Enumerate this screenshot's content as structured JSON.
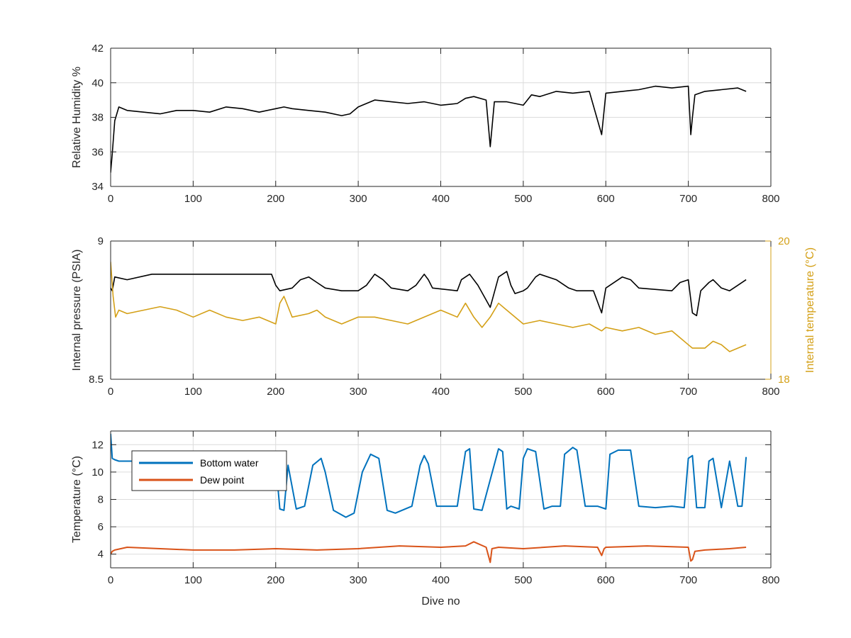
{
  "colors": {
    "background": "#ffffff",
    "axis": "#262626",
    "grid": "#dcdcdc",
    "black_series": "#000000",
    "internal_temperature": "#d4a017",
    "bottom_water": "#0072bd",
    "dew_point": "#d95319"
  },
  "chart_data": [
    {
      "type": "line",
      "xlim": [
        0,
        800
      ],
      "ylim": [
        34,
        42
      ],
      "xticks": [
        "0",
        "100",
        "200",
        "300",
        "400",
        "500",
        "600",
        "700",
        "800"
      ],
      "yticks": [
        "34",
        "36",
        "38",
        "40",
        "42"
      ],
      "xlabel": "",
      "ylabel": "Relative Humidity %",
      "grid": true,
      "series": [
        {
          "color": "#000000",
          "x": [
            0,
            2,
            5,
            10,
            20,
            40,
            60,
            80,
            100,
            120,
            140,
            160,
            180,
            200,
            210,
            220,
            240,
            260,
            280,
            290,
            300,
            320,
            340,
            360,
            380,
            400,
            420,
            430,
            440,
            455,
            460,
            465,
            480,
            500,
            510,
            520,
            540,
            560,
            580,
            595,
            600,
            620,
            640,
            660,
            680,
            700,
            703,
            705,
            708,
            720,
            740,
            760,
            770
          ],
          "y": [
            34.8,
            35.9,
            37.8,
            38.6,
            38.4,
            38.3,
            38.2,
            38.4,
            38.4,
            38.3,
            38.6,
            38.5,
            38.3,
            38.5,
            38.6,
            38.5,
            38.4,
            38.3,
            38.1,
            38.2,
            38.6,
            39.0,
            38.9,
            38.8,
            38.9,
            38.7,
            38.8,
            39.1,
            39.2,
            39.0,
            36.3,
            38.9,
            38.9,
            38.7,
            39.3,
            39.2,
            39.5,
            39.4,
            39.5,
            37.0,
            39.4,
            39.5,
            39.6,
            39.8,
            39.7,
            39.8,
            37.0,
            38.0,
            39.3,
            39.5,
            39.6,
            39.7,
            39.5
          ]
        }
      ]
    },
    {
      "type": "line",
      "xlim": [
        0,
        800
      ],
      "ylim": [
        8.5,
        9
      ],
      "y2lim": [
        18,
        20
      ],
      "xticks": [
        "0",
        "100",
        "200",
        "300",
        "400",
        "500",
        "600",
        "700",
        "800"
      ],
      "yticks": [
        "8.5",
        "9"
      ],
      "y2ticks": [
        "18",
        "20"
      ],
      "xlabel": "",
      "ylabel": "Internal pressure (PSIA)",
      "y2label": "Internal temperature (°C)",
      "grid": true,
      "series": [
        {
          "axis": "left",
          "color": "#000000",
          "x": [
            0,
            2,
            5,
            20,
            50,
            100,
            150,
            195,
            200,
            205,
            220,
            230,
            240,
            250,
            260,
            280,
            300,
            310,
            320,
            330,
            340,
            360,
            370,
            380,
            385,
            390,
            420,
            425,
            435,
            445,
            460,
            470,
            480,
            485,
            490,
            500,
            505,
            515,
            520,
            540,
            555,
            565,
            570,
            585,
            595,
            600,
            620,
            630,
            640,
            680,
            690,
            700,
            705,
            710,
            715,
            725,
            730,
            740,
            750,
            760,
            770
          ],
          "y": [
            8.83,
            8.82,
            8.87,
            8.86,
            8.88,
            8.88,
            8.88,
            8.88,
            8.84,
            8.82,
            8.83,
            8.86,
            8.87,
            8.85,
            8.83,
            8.82,
            8.82,
            8.84,
            8.88,
            8.86,
            8.83,
            8.82,
            8.84,
            8.88,
            8.86,
            8.83,
            8.82,
            8.86,
            8.88,
            8.84,
            8.76,
            8.87,
            8.89,
            8.84,
            8.81,
            8.82,
            8.83,
            8.87,
            8.88,
            8.86,
            8.83,
            8.82,
            8.82,
            8.82,
            8.74,
            8.83,
            8.87,
            8.86,
            8.83,
            8.82,
            8.85,
            8.86,
            8.74,
            8.73,
            8.82,
            8.85,
            8.86,
            8.83,
            8.82,
            8.84,
            8.86
          ]
        },
        {
          "axis": "right",
          "color": "#d4a017",
          "x": [
            0,
            3,
            6,
            10,
            20,
            40,
            60,
            80,
            100,
            120,
            140,
            160,
            180,
            200,
            205,
            210,
            220,
            240,
            250,
            260,
            280,
            300,
            320,
            340,
            360,
            380,
            400,
            420,
            430,
            440,
            450,
            460,
            470,
            480,
            500,
            520,
            540,
            560,
            580,
            595,
            600,
            620,
            640,
            660,
            680,
            690,
            700,
            705,
            710,
            720,
            730,
            740,
            750,
            760,
            770
          ],
          "y": [
            19.7,
            19.2,
            18.9,
            19.0,
            18.95,
            19.0,
            19.05,
            19.0,
            18.9,
            19.0,
            18.9,
            18.85,
            18.9,
            18.8,
            19.1,
            19.2,
            18.9,
            18.95,
            19.0,
            18.9,
            18.8,
            18.9,
            18.9,
            18.85,
            18.8,
            18.9,
            19.0,
            18.9,
            19.1,
            18.9,
            18.75,
            18.9,
            19.1,
            19.0,
            18.8,
            18.85,
            18.8,
            18.75,
            18.8,
            18.7,
            18.75,
            18.7,
            18.75,
            18.65,
            18.7,
            18.6,
            18.5,
            18.45,
            18.45,
            18.45,
            18.55,
            18.5,
            18.4,
            18.45,
            18.5
          ]
        }
      ]
    },
    {
      "type": "line",
      "xlim": [
        0,
        800
      ],
      "ylim": [
        3,
        13
      ],
      "xticks": [
        "0",
        "100",
        "200",
        "300",
        "400",
        "500",
        "600",
        "700",
        "800"
      ],
      "yticks": [
        "4",
        "6",
        "8",
        "10",
        "12"
      ],
      "xlabel": "Dive no",
      "ylabel": "Temperature (°C)",
      "grid": true,
      "legend": {
        "position": "top-left",
        "entries": [
          "Bottom water",
          "Dew point"
        ]
      },
      "series": [
        {
          "name": "Bottom water",
          "color": "#0072bd",
          "x": [
            0,
            2,
            5,
            10,
            20,
            60,
            100,
            150,
            200,
            205,
            210,
            215,
            225,
            235,
            245,
            255,
            260,
            270,
            285,
            295,
            305,
            315,
            325,
            335,
            345,
            365,
            375,
            380,
            385,
            395,
            405,
            420,
            430,
            435,
            440,
            450,
            470,
            475,
            480,
            485,
            495,
            500,
            505,
            515,
            525,
            535,
            545,
            550,
            560,
            565,
            575,
            590,
            600,
            605,
            615,
            630,
            640,
            660,
            680,
            695,
            700,
            705,
            710,
            720,
            725,
            730,
            740,
            750,
            760,
            765,
            770
          ],
          "y": [
            12.8,
            11.0,
            10.9,
            10.8,
            10.8,
            10.8,
            10.8,
            10.8,
            10.7,
            7.3,
            7.2,
            10.5,
            7.3,
            7.5,
            10.5,
            11.0,
            10.0,
            7.2,
            6.7,
            7.0,
            10.0,
            11.3,
            11.0,
            7.2,
            7.0,
            7.5,
            10.5,
            11.2,
            10.6,
            7.5,
            7.5,
            7.5,
            11.5,
            11.7,
            7.3,
            7.2,
            11.7,
            11.5,
            7.3,
            7.5,
            7.3,
            11.0,
            11.7,
            11.5,
            7.3,
            7.5,
            7.5,
            11.3,
            11.8,
            11.6,
            7.5,
            7.5,
            7.3,
            11.3,
            11.6,
            11.6,
            7.5,
            7.4,
            7.5,
            7.4,
            11.0,
            11.2,
            7.4,
            7.4,
            10.8,
            11.0,
            7.4,
            10.8,
            7.5,
            7.5,
            11.1
          ]
        },
        {
          "name": "Dew point",
          "color": "#d95319",
          "x": [
            0,
            2,
            5,
            20,
            60,
            100,
            150,
            200,
            250,
            300,
            350,
            400,
            430,
            440,
            455,
            460,
            462,
            470,
            500,
            550,
            590,
            595,
            598,
            600,
            650,
            700,
            703,
            705,
            708,
            720,
            750,
            770
          ],
          "y": [
            4.0,
            4.2,
            4.3,
            4.5,
            4.4,
            4.3,
            4.3,
            4.4,
            4.3,
            4.4,
            4.6,
            4.5,
            4.6,
            4.9,
            4.5,
            3.4,
            4.4,
            4.5,
            4.4,
            4.6,
            4.5,
            3.9,
            4.4,
            4.5,
            4.6,
            4.5,
            3.5,
            3.6,
            4.2,
            4.3,
            4.4,
            4.5
          ]
        }
      ]
    }
  ]
}
